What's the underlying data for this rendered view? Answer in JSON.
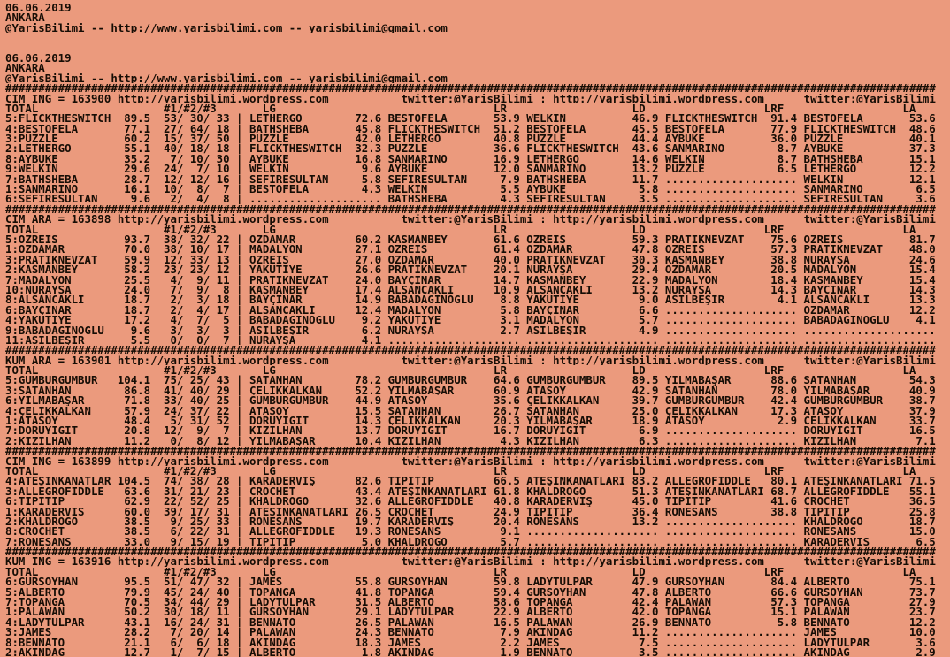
{
  "page": {
    "background_color": "#eb9a7d",
    "text_color": "#160d05",
    "separator_char": "#",
    "dot_char": ".",
    "field_separator": "|"
  },
  "header": {
    "blocks": [
      {
        "lines": [
          "06.06.2019",
          "ANKARA",
          "@YarisBilimi -- http://www.yarisbilimi.com -- yarisbilimi@gmail.com"
        ]
      },
      {
        "lines": [
          "06.06.2019",
          "ANKARA",
          "@YarisBilimi -- http://www.yarisbilimi.com -- yarisbilimi@gmail.com"
        ]
      }
    ]
  },
  "sections": [
    {
      "race_id": "CIM ING = 163900",
      "url": "http://yarisbilimi.wordpress.com",
      "twitter": "twitter:@YarisBilimi",
      "columns": [
        "TOTAL",
        "#1/#2/#3",
        "LG",
        "LR",
        "LD",
        "LRF",
        "LA"
      ],
      "rows": [
        [
          "5:FLICKTHESWITCH",
          "89.5",
          "53/ 30/ 33",
          [
            "LETHERGO",
            "72.6"
          ],
          [
            "BESTOFELA",
            "53.9"
          ],
          [
            "WELKIN",
            "46.9"
          ],
          [
            "FLICKTHESWITCH",
            "91.4"
          ],
          [
            "BESTOFELA",
            "53.6"
          ]
        ],
        [
          "4:BESTOFELA",
          "77.1",
          "27/ 64/ 18",
          [
            "BATHSHEBA",
            "45.8"
          ],
          [
            "FLICKTHESWITCH",
            "51.2"
          ],
          [
            "BESTOFELA",
            "45.5"
          ],
          [
            "BESTOFELA",
            "77.9"
          ],
          [
            "FLICKTHESWITCH",
            "48.6"
          ]
        ],
        [
          "3:PUZZLE",
          "60.2",
          "15/ 37/ 50",
          [
            "PUZZLE",
            "42.0"
          ],
          [
            "LETHERGO",
            "40.8"
          ],
          [
            "PUZZLE",
            "44.4"
          ],
          [
            "AYBÜKE",
            "36.0"
          ],
          [
            "PUZZLE",
            "40.1"
          ]
        ],
        [
          "2:LETHERGO",
          "55.1",
          "40/ 18/ 18",
          [
            "FLICKTHESWITCH",
            "32.3"
          ],
          [
            "PUZZLE",
            "36.6"
          ],
          [
            "FLICKTHESWITCH",
            "43.6"
          ],
          [
            "SANMARINO",
            "8.7"
          ],
          [
            "AYBÜKE",
            "37.3"
          ]
        ],
        [
          "8:AYBÜKE",
          "35.2",
          " 7/ 10/ 30",
          [
            "AYBÜKE",
            "16.8"
          ],
          [
            "SANMARINO",
            "16.9"
          ],
          [
            "LETHERGO",
            "14.6"
          ],
          [
            "WELKIN",
            "8.7"
          ],
          [
            "BATHSHEBA",
            "15.1"
          ]
        ],
        [
          "9:WELKIN",
          "29.6",
          "24/  7/ 10",
          [
            "WELKIN",
            "9.6"
          ],
          [
            "AYBÜKE",
            "12.0"
          ],
          [
            "SANMARINO",
            "13.2"
          ],
          [
            "PUZZLE",
            "6.5"
          ],
          [
            "LETHERGO",
            "12.2"
          ]
        ],
        [
          "7:BATHSHEBA",
          "28.7",
          "12/ 12/ 16",
          [
            "SEFİRESULTAN",
            "5.8"
          ],
          [
            "SEFİRESULTAN",
            "7.9"
          ],
          [
            "BATHSHEBA",
            "11.7"
          ],
          null,
          [
            "WELKIN",
            "12.1"
          ]
        ],
        [
          "1:SANMARINO",
          "16.1",
          "10/  8/  7",
          [
            "BESTOFELA",
            "4.3"
          ],
          [
            "WELKIN",
            "5.5"
          ],
          [
            "AYBÜKE",
            "5.8"
          ],
          null,
          [
            "SANMARINO",
            "6.5"
          ]
        ],
        [
          "6:SEFİRESULTAN",
          "9.6",
          " 2/  4/  8",
          null,
          [
            "BATHSHEBA",
            "4.3"
          ],
          [
            "SEFİRESULTAN",
            "3.5"
          ],
          null,
          [
            "SEFİRESULTAN",
            "3.6"
          ]
        ]
      ]
    },
    {
      "race_id": "CIM ARA = 163898",
      "url": "http://yarisbilimi.wordpress.com",
      "twitter": "twitter:@YarisBilimi",
      "columns": [
        "TOTAL",
        "#1/#2/#3",
        "LG",
        "LR",
        "LD",
        "LRF",
        "LA"
      ],
      "rows": [
        [
          "5:ÖZREİS",
          "93.7",
          "38/ 32/ 22",
          [
            "ÖZDAMAR",
            "60.2"
          ],
          [
            "KASMANBEY",
            "61.6"
          ],
          [
            "ÖZREİS",
            "59.3"
          ],
          [
            "PRATİKNEVZAT",
            "75.6"
          ],
          [
            "ÖZREİS",
            "81.7"
          ]
        ],
        [
          "1:ÖZDAMAR",
          "70.0",
          "38/ 10/ 17",
          [
            "MADALYON",
            "27.1"
          ],
          [
            "ÖZREİS",
            "61.4"
          ],
          [
            "ÖZDAMAR",
            "47.8"
          ],
          [
            "ÖZREİS",
            "57.3"
          ],
          [
            "PRATİKNEVZAT",
            "48.0"
          ]
        ],
        [
          "3:PRATİKNEVZAT",
          "59.9",
          "12/ 33/ 13",
          [
            "ÖZREİS",
            "27.0"
          ],
          [
            "ÖZDAMAR",
            "40.0"
          ],
          [
            "PRATİKNEVZAT",
            "30.3"
          ],
          [
            "KASMANBEY",
            "38.8"
          ],
          [
            "NURAYŞA",
            "24.6"
          ]
        ],
        [
          "2:KASMANBEY",
          "58.2",
          "23/ 23/ 12",
          [
            "YAKUTİYE",
            "26.6"
          ],
          [
            "PRATİKNEVZAT",
            "20.1"
          ],
          [
            "NURAYŞA",
            "29.4"
          ],
          [
            "ÖZDAMAR",
            "20.5"
          ],
          [
            "MADALYON",
            "15.4"
          ]
        ],
        [
          "7:MADALYON",
          "25.5",
          " 4/  9/ 11",
          [
            "PRATİKNEVZAT",
            "24.0"
          ],
          [
            "BAYÇINAR",
            "14.7"
          ],
          [
            "KASMANBEY",
            "22.9"
          ],
          [
            "MADALYON",
            "18.4"
          ],
          [
            "KASMANBEY",
            "15.4"
          ]
        ],
        [
          "10:NURAYŞA",
          "24.0",
          " 7/  9/  8",
          [
            "KASMANBEY",
            "17.4"
          ],
          [
            "ALSANCAKLI",
            "10.9"
          ],
          [
            "ALSANCAKLI",
            "13.2"
          ],
          [
            "NURAYŞA",
            "14.3"
          ],
          [
            "BAYÇINAR",
            "14.3"
          ]
        ],
        [
          "8:ALSANCAKLI",
          "18.7",
          " 2/  3/ 18",
          [
            "BAYÇINAR",
            "14.9"
          ],
          [
            "BABADAĞINOĞLU",
            "8.8"
          ],
          [
            "YAKUTİYE",
            "9.0"
          ],
          [
            "ASİLBEŞİR",
            "4.1"
          ],
          [
            "ALSANCAKLI",
            "13.3"
          ]
        ],
        [
          "6:BAYÇINAR",
          "18.7",
          " 2/  4/ 17",
          [
            "ALSANCAKLI",
            "12.4"
          ],
          [
            "MADALYON",
            "5.8"
          ],
          [
            "BAYÇINAR",
            "6.6"
          ],
          null,
          [
            "ÖZDAMAR",
            "12.2"
          ]
        ],
        [
          "4:YAKUTİYE",
          "17.2",
          " 4/  7/  5",
          [
            "BABADAĞINOĞLU",
            "9.2"
          ],
          [
            "YAKUTİYE",
            "3.1"
          ],
          [
            "MADALYON",
            "5.7"
          ],
          null,
          [
            "BABADAĞINOĞLU",
            "4.1"
          ]
        ],
        [
          "9:BABADAĞINOĞLU",
          "9.6",
          " 3/  3/  3",
          [
            "ASİLBEŞİR",
            "6.2"
          ],
          [
            "NURAYŞA",
            "2.7"
          ],
          [
            "ASİLBEŞİR",
            "4.9"
          ],
          null,
          null
        ],
        [
          "11:ASİLBEŞİR",
          "5.5",
          " 0/  0/  7",
          [
            "NURAYŞA",
            "4.1"
          ],
          null,
          null,
          null,
          null
        ]
      ]
    },
    {
      "race_id": "KUM ARA = 163901",
      "url": "http://yarisbilimi.wordpress.com",
      "twitter": "twitter:@YarisBilimi",
      "columns": [
        "TOTAL",
        "#1/#2/#3",
        "LG",
        "LR",
        "LD",
        "LRF",
        "LA"
      ],
      "rows": [
        [
          "5:GÜMBÜRGÜMBÜR",
          "104.1",
          "75/ 25/ 43",
          [
            "SATANHAN",
            "78.2"
          ],
          [
            "GÜMBÜRGÜMBÜR",
            "64.6"
          ],
          [
            "GÜMBÜRGÜMBÜR",
            "89.5"
          ],
          [
            "YILMABAŞAR",
            "88.6"
          ],
          [
            "SATANHAN",
            "54.3"
          ]
        ],
        [
          "3:SATANHAN",
          "86.8",
          "41/ 40/ 29",
          [
            "ÇELİKKALKAN",
            "52.2"
          ],
          [
            "YILMABAŞAR",
            "60.9"
          ],
          [
            "ATASOY",
            "42.9"
          ],
          [
            "SATANHAN",
            "78.0"
          ],
          [
            "YILMABAŞAR",
            "40.9"
          ]
        ],
        [
          "6:YILMABAŞAR",
          "71.8",
          "33/ 40/ 25",
          [
            "GÜMBÜRGÜMBÜR",
            "44.9"
          ],
          [
            "ATASOY",
            "35.6"
          ],
          [
            "ÇELİKKALKAN",
            "39.7"
          ],
          [
            "GÜMBÜRGÜMBÜR",
            "42.4"
          ],
          [
            "GÜMBÜRGÜMBÜR",
            "38.7"
          ]
        ],
        [
          "4:ÇELİKKALKAN",
          "57.9",
          "24/ 37/ 22",
          [
            "ATASOY",
            "15.5"
          ],
          [
            "SATANHAN",
            "26.7"
          ],
          [
            "SATANHAN",
            "25.0"
          ],
          [
            "ÇELİKKALKAN",
            "17.3"
          ],
          [
            "ATASOY",
            "37.9"
          ]
        ],
        [
          "1:ATASOY",
          "48.4",
          " 5/ 31/ 52",
          [
            "DORUYİĞİT",
            "14.3"
          ],
          [
            "ÇELİKKALKAN",
            "20.3"
          ],
          [
            "YILMABAŞAR",
            "18.9"
          ],
          [
            "ATASOY",
            "2.9"
          ],
          [
            "ÇELİKKALKAN",
            "33.7"
          ]
        ],
        [
          "7:DORUYİĞİT",
          "20.8",
          "12/  9/  7",
          [
            "KIZILHAN",
            "13.7"
          ],
          [
            "DORUYİĞİT",
            "16.7"
          ],
          [
            "DORUYİĞİT",
            "6.9"
          ],
          null,
          [
            "DORUYİĞİT",
            "16.5"
          ]
        ],
        [
          "2:KIZILHAN",
          "11.2",
          " 0/  8/ 12",
          [
            "YILMABAŞAR",
            "10.4"
          ],
          [
            "KIZILHAN",
            "4.3"
          ],
          [
            "KIZILHAN",
            "6.3"
          ],
          null,
          [
            "KIZILHAN",
            "7.1"
          ]
        ]
      ]
    },
    {
      "race_id": "CIM ING = 163899",
      "url": "http://yarisbilimi.wordpress.com",
      "twitter": "twitter:@YarisBilimi",
      "columns": [
        "TOTAL",
        "#1/#2/#3",
        "LG",
        "LR",
        "LD",
        "LRF",
        "LA"
      ],
      "rows": [
        [
          "4:ATEŞİNKANATLAR",
          "104.5",
          "74/ 38/ 28",
          [
            "KARADERVİŞ",
            "82.6"
          ],
          [
            "TİPİTİP",
            "66.5"
          ],
          [
            "ATEŞİNKANATLARI",
            "83.2"
          ],
          [
            "ALLEGROFIDDLE",
            "80.1"
          ],
          [
            "ATEŞİNKANATLARI",
            "71.5"
          ]
        ],
        [
          "3:ALLEGROFIDDLE",
          "63.6",
          "31/ 21/ 23",
          [
            "CROCHET",
            "43.4"
          ],
          [
            "ATEŞİNKANATLARI",
            "61.8"
          ],
          [
            "KHALDROGO",
            "51.3"
          ],
          [
            "ATEŞİNKANATLARI",
            "68.7"
          ],
          [
            "ALLEGROFIDDLE",
            "55.1"
          ]
        ],
        [
          "6:TİPİTİP",
          "62.9",
          "22/ 52/ 25",
          [
            "KHALDROGO",
            "32.6"
          ],
          [
            "ALLEGROFIDDLE",
            "40.8"
          ],
          [
            "KARADERVİŞ",
            "45.0"
          ],
          [
            "TİPİTİP",
            "41.6"
          ],
          [
            "CROCHET",
            "36.5"
          ]
        ],
        [
          "1:KARADERVİŞ",
          "60.0",
          "39/ 17/ 31",
          [
            "ATEŞİNKANATLARI",
            "26.5"
          ],
          [
            "CROCHET",
            "24.9"
          ],
          [
            "TİPİTİP",
            "36.4"
          ],
          [
            "RONESANS",
            "38.8"
          ],
          [
            "TİPİTİP",
            "25.8"
          ]
        ],
        [
          "2:KHALDROGO",
          "38.5",
          " 9/ 25/ 33",
          [
            "RONESANS",
            "19.7"
          ],
          [
            "KARADERVİŞ",
            "20.4"
          ],
          [
            "RONESANS",
            "13.2"
          ],
          null,
          [
            "KHALDROGO",
            "18.7"
          ]
        ],
        [
          "8:CROCHET",
          "38.5",
          " 6/ 22/ 31",
          [
            "ALLEGROFIDDLE",
            "19.3"
          ],
          [
            "RONESANS",
            "9.1"
          ],
          null,
          null,
          [
            "RONESANS",
            "15.0"
          ]
        ],
        [
          "7:RONESANS",
          "33.0",
          " 9/ 15/ 19",
          [
            "TİPİTİP",
            "5.0"
          ],
          [
            "KHALDROGO",
            "5.7"
          ],
          null,
          null,
          [
            "KARADERVİŞ",
            "6.5"
          ]
        ]
      ]
    },
    {
      "race_id": "KUM ING = 163916",
      "url": "http://yarisbilimi.wordpress.com",
      "twitter": "twitter:@YarisBilimi",
      "columns": [
        "TOTAL",
        "#1/#2/#3",
        "LG",
        "LR",
        "LD",
        "LRF",
        "LA"
      ],
      "rows": [
        [
          "6:GÜRSOYHAN",
          "95.5",
          "51/ 47/ 32",
          [
            "JAMES",
            "55.8"
          ],
          [
            "GÜRSOYHAN",
            "59.8"
          ],
          [
            "LADYTULPAR",
            "47.9"
          ],
          [
            "GÜRSOYHAN",
            "84.4"
          ],
          [
            "ALBERTO",
            "75.1"
          ]
        ],
        [
          "5:ALBERTO",
          "79.9",
          "45/ 24/ 40",
          [
            "TOPANGA",
            "41.8"
          ],
          [
            "TOPANGA",
            "59.4"
          ],
          [
            "GÜRSOYHAN",
            "47.8"
          ],
          [
            "ALBERTO",
            "66.6"
          ],
          [
            "GÜRSOYHAN",
            "73.7"
          ]
        ],
        [
          "7:TOPANGA",
          "70.5",
          "34/ 44/ 29",
          [
            "LADYTULPAR",
            "31.5"
          ],
          [
            "ALBERTO",
            "58.6"
          ],
          [
            "TOPANGA",
            "42.4"
          ],
          [
            "PALAWAN",
            "57.3"
          ],
          [
            "TOPANGA",
            "27.9"
          ]
        ],
        [
          "1:PALAWAN",
          "50.2",
          "30/ 18/ 11",
          [
            "GÜRSOYHAN",
            "29.1"
          ],
          [
            "LADYTULPAR",
            "22.9"
          ],
          [
            "ALBERTO",
            "42.0"
          ],
          [
            "TOPANGA",
            "15.1"
          ],
          [
            "PALAWAN",
            "23.7"
          ]
        ],
        [
          "4:LADYTULPAR",
          "43.1",
          "16/ 24/ 31",
          [
            "BENNATO",
            "26.5"
          ],
          [
            "PALAWAN",
            "16.5"
          ],
          [
            "PALAWAN",
            "26.9"
          ],
          [
            "BENNATO",
            "5.8"
          ],
          [
            "BENNATO",
            "12.2"
          ]
        ],
        [
          "3:JAMES",
          "28.2",
          " 7/ 20/ 14",
          [
            "PALAWAN",
            "24.3"
          ],
          [
            "BENNATO",
            "7.9"
          ],
          [
            "AKINDAĞ",
            "11.2"
          ],
          null,
          [
            "JAMES",
            "10.0"
          ]
        ],
        [
          "8:BENNATO",
          "21.1",
          " 6/  6/ 18",
          [
            "AKINDAĞ",
            "18.3"
          ],
          [
            "JAMES",
            "2.2"
          ],
          [
            "JAMES",
            "7.5"
          ],
          null,
          [
            "LADYTULPAR",
            "3.6"
          ]
        ],
        [
          "2:AKINDAĞ",
          "12.7",
          " 1/  7/ 15",
          [
            "ALBERTO",
            "1.8"
          ],
          [
            "AKINDAĞ",
            "1.9"
          ],
          [
            "BENNATO",
            "3.5"
          ],
          null,
          [
            "AKINDAĞ",
            "2.9"
          ]
        ]
      ]
    }
  ]
}
